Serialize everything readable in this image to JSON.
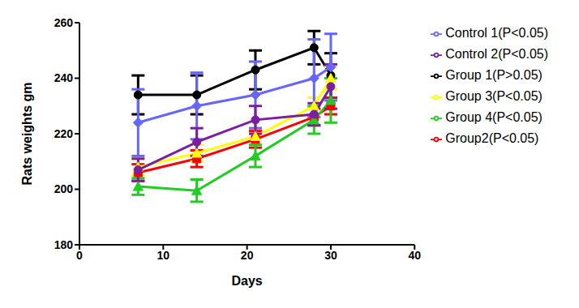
{
  "chart_data": {
    "type": "line",
    "x_label": "Days",
    "y_label": "Rats weights gm",
    "x": [
      7,
      14,
      21,
      28,
      30
    ],
    "xlim": [
      0,
      40
    ],
    "xticks": [
      0,
      10,
      20,
      30,
      40
    ],
    "ylim": [
      180,
      260
    ],
    "yticks": [
      180,
      200,
      220,
      240,
      260
    ],
    "grid": false,
    "legend": "right",
    "series": [
      {
        "name": "Group 1(P>0.05)",
        "color": "#000000",
        "marker": "circle",
        "values": [
          234,
          234,
          243,
          251,
          241
        ],
        "errors": [
          7,
          7,
          7,
          6,
          8
        ]
      },
      {
        "name": "Group2(P<0.05)",
        "color": "#ff0000",
        "marker": "square",
        "values": [
          206,
          211,
          218,
          226,
          230
        ],
        "errors": [
          3,
          3,
          3,
          3,
          3
        ]
      },
      {
        "name": "Group 3(P<0.05)",
        "color": "#ffff00",
        "marker": "triangle",
        "values": [
          208,
          213,
          219,
          230,
          240
        ],
        "errors": [
          3,
          3,
          3,
          3,
          4
        ]
      },
      {
        "name": "Group 4(P<0.05)",
        "color": "#22cc22",
        "marker": "triangle",
        "values": [
          201,
          199.5,
          212,
          225,
          232
        ],
        "errors": [
          3,
          4,
          4,
          5,
          8
        ]
      },
      {
        "name": "Control 1(P<0.05)",
        "color": "#6666ff",
        "marker": "diamond",
        "values": [
          224,
          230,
          234,
          240,
          244
        ],
        "errors": [
          12,
          12,
          12,
          14,
          12
        ]
      },
      {
        "name": "Control 2(P<0.05)",
        "color": "#7b1fa2",
        "marker": "circle",
        "values": [
          207,
          217,
          225,
          227,
          237
        ],
        "errors": [
          4,
          5,
          5,
          4,
          8
        ]
      }
    ]
  }
}
